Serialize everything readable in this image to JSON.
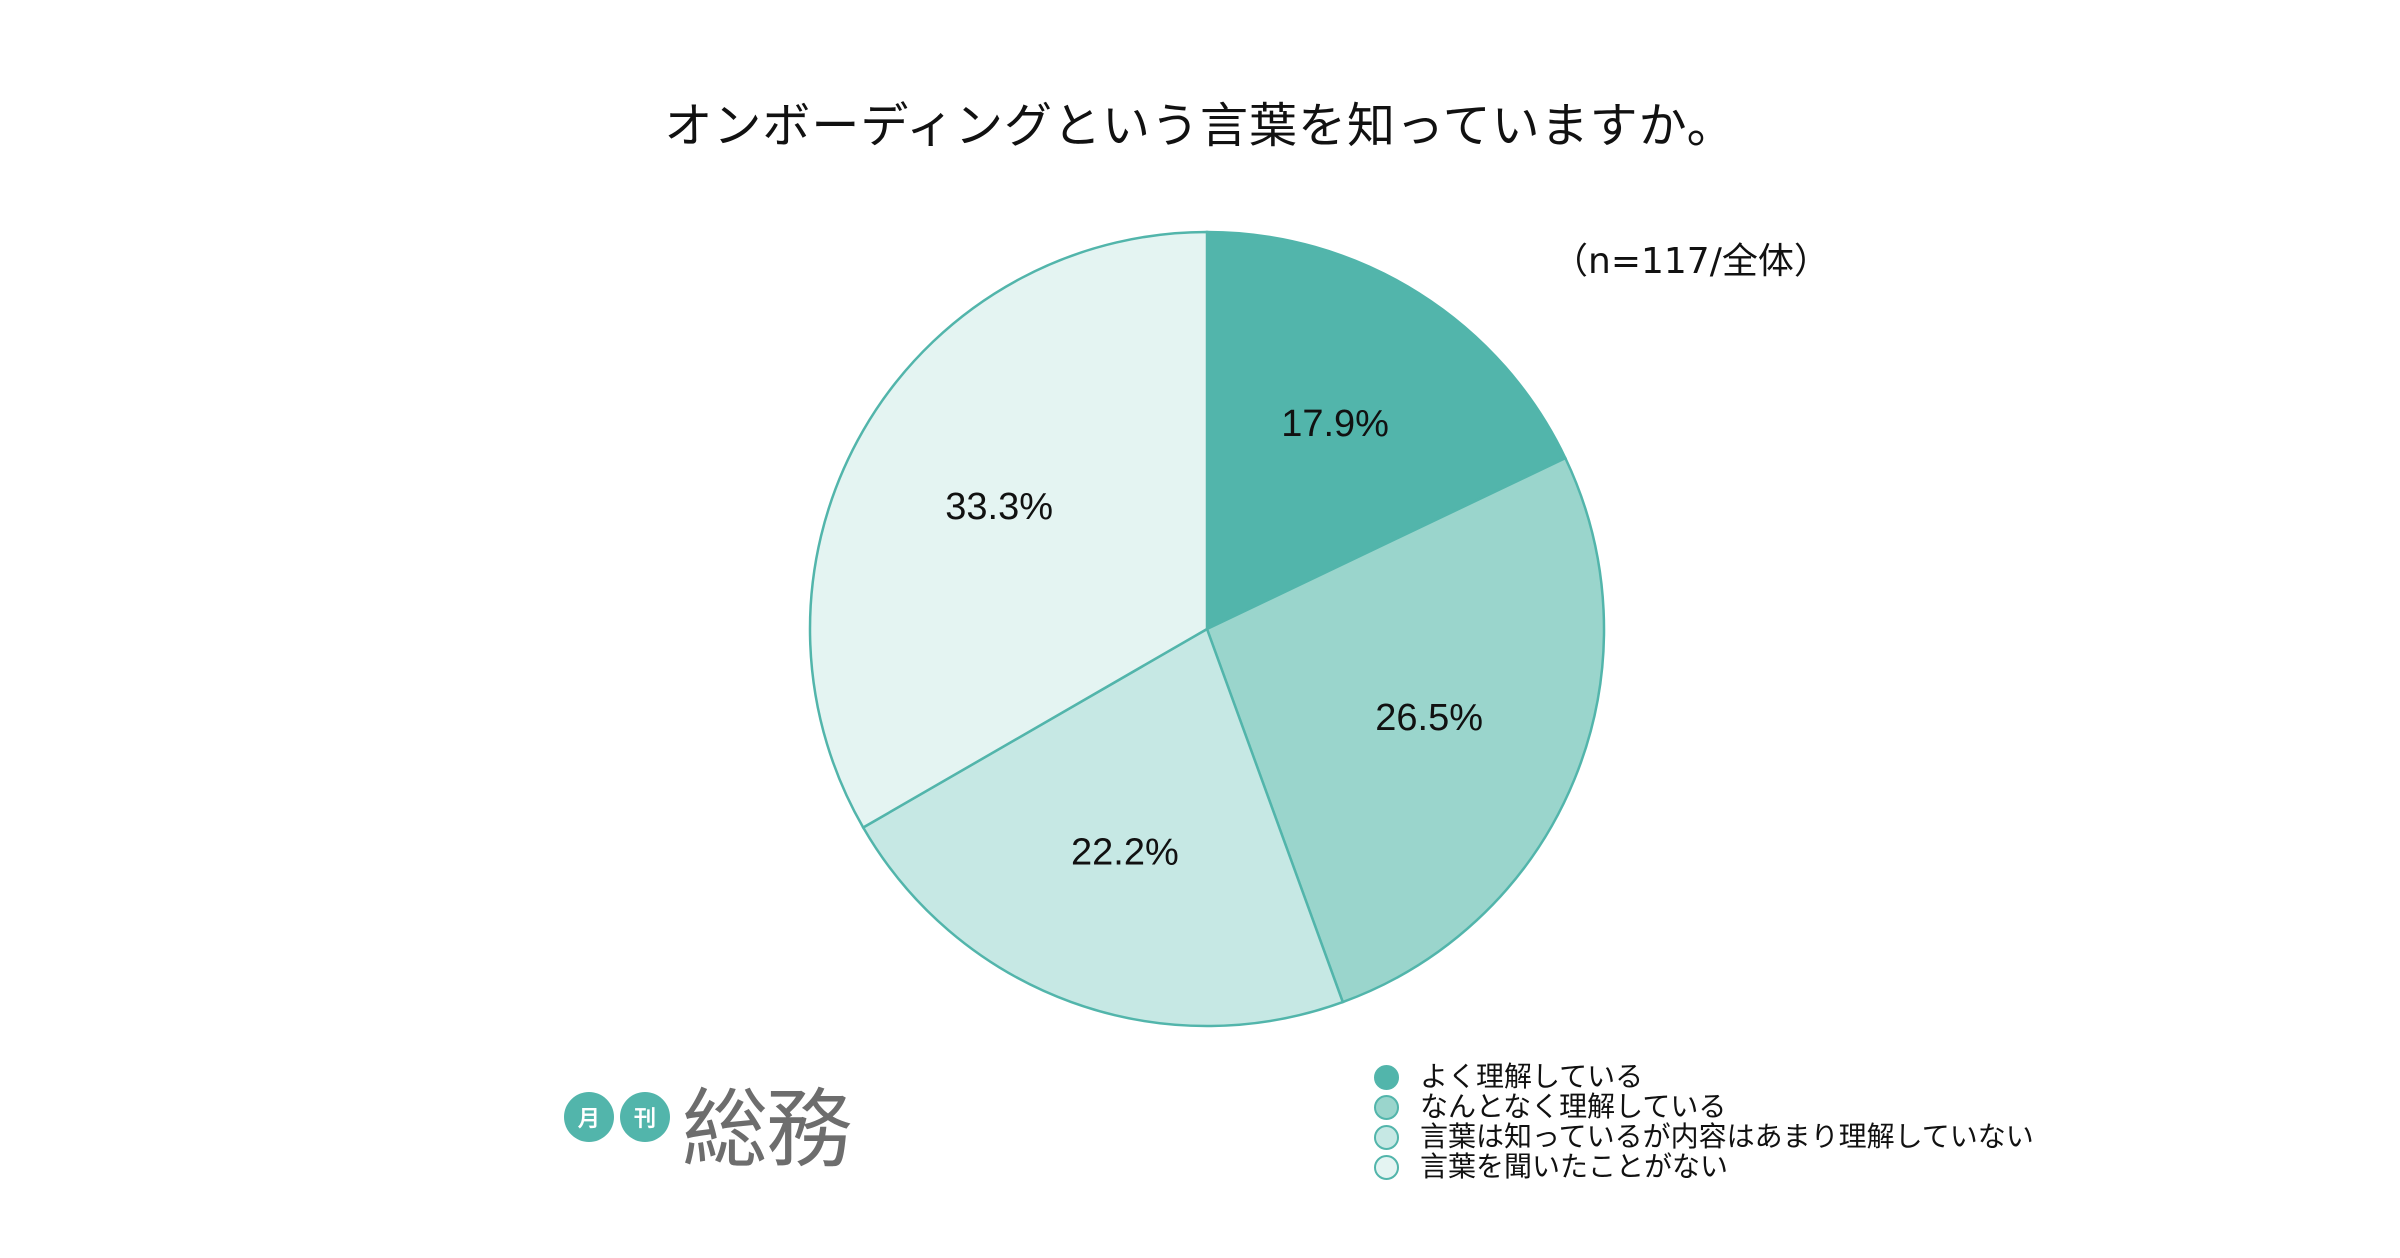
{
  "chart_data": {
    "type": "pie",
    "title": "オンボーディングという言葉を知っていますか。",
    "sample_note": "（n=117/全体）",
    "categories": [
      "よく理解している",
      "なんとなく理解している",
      "言葉は知っているが内容はあまり理解していない",
      "言葉を聞いたことがない"
    ],
    "values": [
      17.9,
      26.5,
      22.2,
      33.3
    ],
    "value_labels": [
      "17.9%",
      "26.5%",
      "22.2%",
      "33.3%"
    ],
    "colors": [
      "#52b5ab",
      "#9ad5cc",
      "#c6e8e4",
      "#e4f4f2"
    ],
    "edge_color": "#52b5ab",
    "start_angle": "12 o'clock",
    "direction": "clockwise",
    "legend_position": "bottom-right"
  },
  "logo": {
    "small_chars": [
      "月",
      "刊"
    ],
    "name": "総務"
  }
}
